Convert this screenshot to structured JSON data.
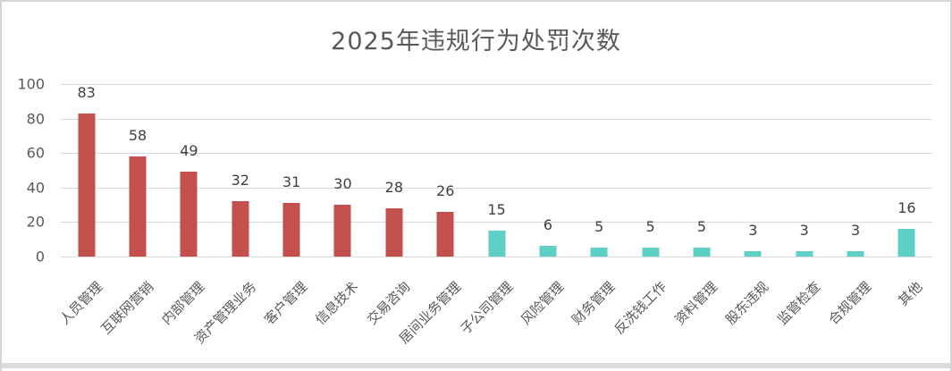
{
  "title": "2025年违规行为处罚次数",
  "chart_data": {
    "type": "bar",
    "title": "2025年违规行为处罚次数",
    "categories": [
      "人员管理",
      "互联网营销",
      "内部管理",
      "资产管理业务",
      "客户管理",
      "信息技术",
      "交易咨询",
      "居间业务管理",
      "子公司管理",
      "风险管理",
      "财务管理",
      "反洗钱工作",
      "资料管理",
      "股东违规",
      "监管检查",
      "合规管理",
      "其他"
    ],
    "values": [
      83,
      58,
      49,
      32,
      31,
      30,
      28,
      26,
      15,
      6,
      5,
      5,
      5,
      3,
      3,
      3,
      16
    ],
    "bar_colors": [
      "#C3504C",
      "#C3504C",
      "#C3504C",
      "#C3504C",
      "#C3504C",
      "#C3504C",
      "#C3504C",
      "#C3504C",
      "#5FD0C5",
      "#5FD0C5",
      "#5FD0C5",
      "#5FD0C5",
      "#5FD0C5",
      "#5FD0C5",
      "#5FD0C5",
      "#5FD0C5",
      "#5FD0C5"
    ],
    "xlabel": "",
    "ylabel": "",
    "ylim": [
      0,
      100
    ],
    "yticks": [
      0,
      20,
      40,
      60,
      80,
      100
    ],
    "grid": true,
    "legend_position": "none",
    "value_labels": true,
    "x_label_rotation_deg": 45
  },
  "colors": {
    "red_bar": "#C3504C",
    "teal_bar": "#5FD0C5",
    "title_text": "#595959",
    "axis_text": "#595959",
    "value_text": "#404040",
    "gridline": "#D9D9D9",
    "window_border": "#D4D4D4"
  }
}
